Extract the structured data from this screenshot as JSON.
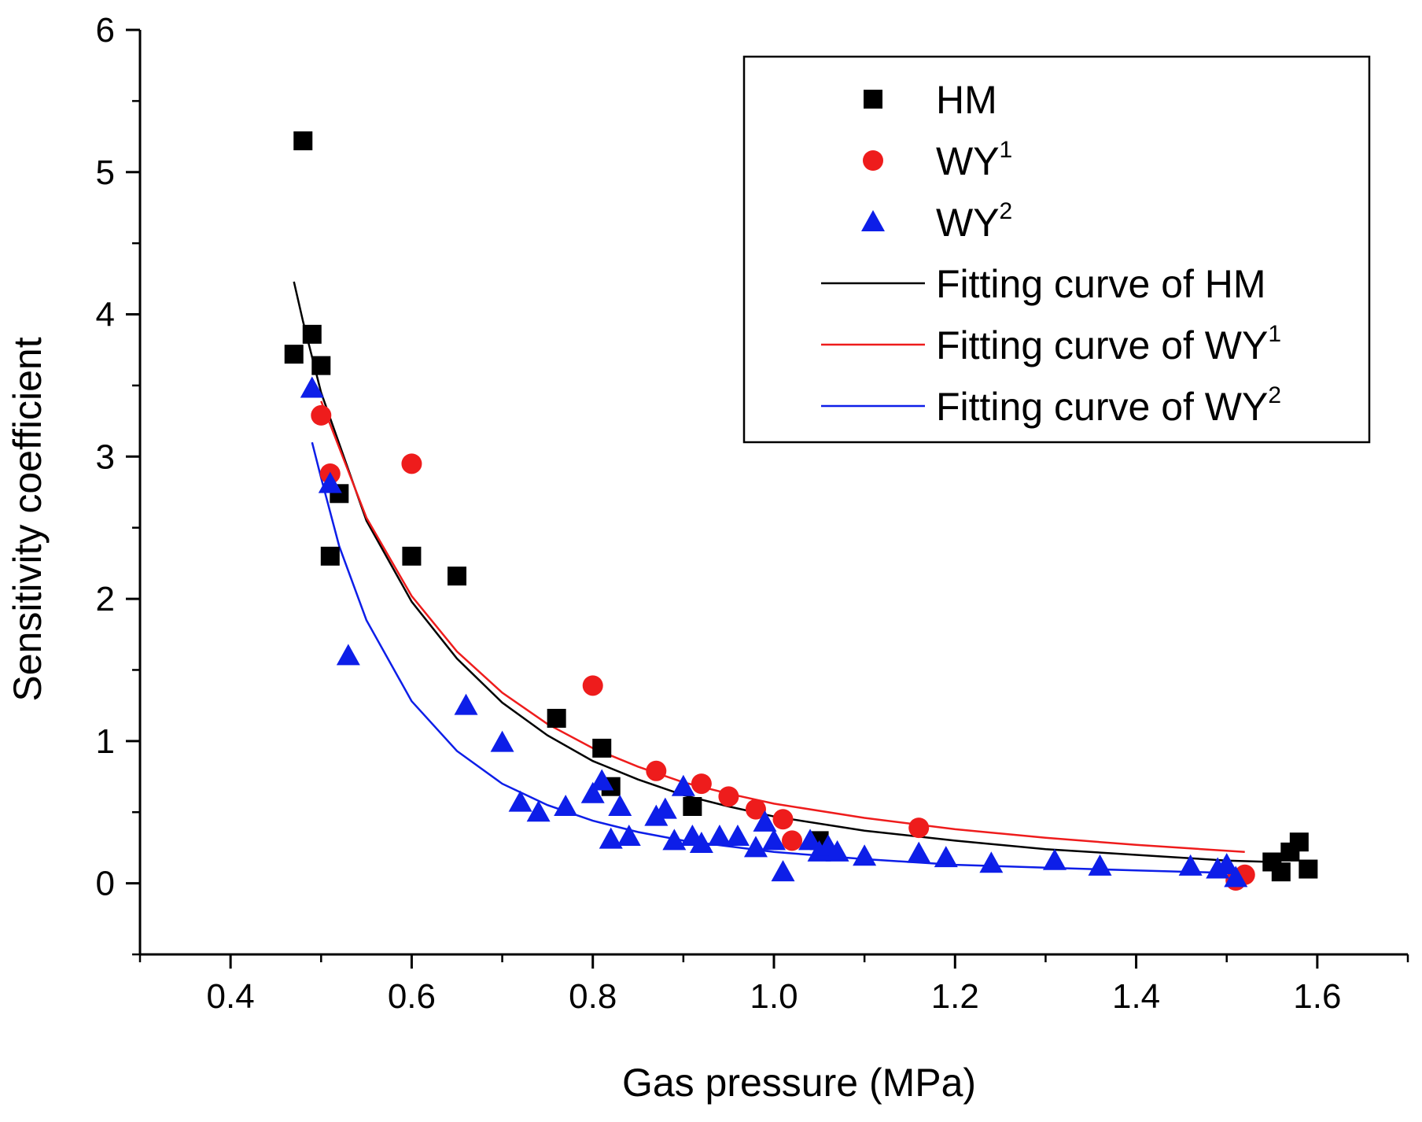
{
  "chart_data": {
    "type": "scatter",
    "xlabel": "Gas pressure (MPa)",
    "ylabel": "Sensitivity coefficient",
    "xlim": [
      0.3,
      1.7
    ],
    "ylim": [
      -0.5,
      6
    ],
    "xticks": [
      "0.4",
      "0.6",
      "0.8",
      "1.0",
      "1.2",
      "1.4",
      "1.6"
    ],
    "xtick_values": [
      0.4,
      0.6,
      0.8,
      1.0,
      1.2,
      1.4,
      1.6
    ],
    "yticks": [
      "0",
      "1",
      "2",
      "3",
      "4",
      "5",
      "6"
    ],
    "ytick_values": [
      0,
      1,
      2,
      3,
      4,
      5,
      6
    ],
    "legend_position": "top-right",
    "grid": false,
    "series": [
      {
        "name": "HM",
        "base": "HM",
        "sup": "",
        "marker": "square",
        "color": "#000000",
        "points": [
          [
            0.47,
            3.72
          ],
          [
            0.48,
            5.22
          ],
          [
            0.49,
            3.86
          ],
          [
            0.5,
            3.64
          ],
          [
            0.51,
            2.3
          ],
          [
            0.52,
            2.74
          ],
          [
            0.6,
            2.3
          ],
          [
            0.65,
            2.16
          ],
          [
            0.76,
            1.16
          ],
          [
            0.81,
            0.95
          ],
          [
            0.82,
            0.68
          ],
          [
            0.91,
            0.54
          ],
          [
            1.05,
            0.3
          ],
          [
            1.55,
            0.15
          ],
          [
            1.56,
            0.08
          ],
          [
            1.57,
            0.22
          ],
          [
            1.58,
            0.29
          ],
          [
            1.59,
            0.1
          ]
        ]
      },
      {
        "name": "WY1",
        "base": "WY",
        "sup": "1",
        "marker": "circle",
        "color": "#ee1c1c",
        "points": [
          [
            0.5,
            3.29
          ],
          [
            0.51,
            2.88
          ],
          [
            0.6,
            2.95
          ],
          [
            0.8,
            1.39
          ],
          [
            0.87,
            0.79
          ],
          [
            0.92,
            0.7
          ],
          [
            0.95,
            0.61
          ],
          [
            0.98,
            0.52
          ],
          [
            1.01,
            0.45
          ],
          [
            1.02,
            0.3
          ],
          [
            1.16,
            0.39
          ],
          [
            1.51,
            0.02
          ],
          [
            1.52,
            0.06
          ]
        ]
      },
      {
        "name": "WY2",
        "base": "WY",
        "sup": "2",
        "marker": "triangle",
        "color": "#0d1ee8",
        "points": [
          [
            0.49,
            3.48
          ],
          [
            0.51,
            2.81
          ],
          [
            0.53,
            1.6
          ],
          [
            0.66,
            1.25
          ],
          [
            0.7,
            0.99
          ],
          [
            0.72,
            0.57
          ],
          [
            0.74,
            0.5
          ],
          [
            0.77,
            0.54
          ],
          [
            0.8,
            0.63
          ],
          [
            0.81,
            0.72
          ],
          [
            0.82,
            0.31
          ],
          [
            0.83,
            0.54
          ],
          [
            0.84,
            0.33
          ],
          [
            0.87,
            0.47
          ],
          [
            0.88,
            0.52
          ],
          [
            0.89,
            0.3
          ],
          [
            0.9,
            0.68
          ],
          [
            0.91,
            0.33
          ],
          [
            0.92,
            0.28
          ],
          [
            0.94,
            0.33
          ],
          [
            0.96,
            0.33
          ],
          [
            0.98,
            0.25
          ],
          [
            0.99,
            0.43
          ],
          [
            1.0,
            0.3
          ],
          [
            1.01,
            0.08
          ],
          [
            1.04,
            0.3
          ],
          [
            1.05,
            0.22
          ],
          [
            1.06,
            0.26
          ],
          [
            1.07,
            0.22
          ],
          [
            1.1,
            0.19
          ],
          [
            1.16,
            0.21
          ],
          [
            1.19,
            0.18
          ],
          [
            1.24,
            0.14
          ],
          [
            1.31,
            0.16
          ],
          [
            1.36,
            0.12
          ],
          [
            1.46,
            0.12
          ],
          [
            1.49,
            0.1
          ],
          [
            1.5,
            0.13
          ],
          [
            1.51,
            0.04
          ]
        ]
      }
    ],
    "fits": [
      {
        "name": "Fitting curve of HM",
        "base": "Fitting curve of HM",
        "sup": "",
        "color": "#000000",
        "points": [
          [
            0.47,
            4.23
          ],
          [
            0.48,
            3.95
          ],
          [
            0.5,
            3.45
          ],
          [
            0.55,
            2.55
          ],
          [
            0.6,
            1.98
          ],
          [
            0.65,
            1.58
          ],
          [
            0.7,
            1.27
          ],
          [
            0.75,
            1.04
          ],
          [
            0.8,
            0.86
          ],
          [
            0.85,
            0.73
          ],
          [
            0.9,
            0.62
          ],
          [
            0.95,
            0.54
          ],
          [
            1.0,
            0.47
          ],
          [
            1.1,
            0.37
          ],
          [
            1.2,
            0.3
          ],
          [
            1.3,
            0.24
          ],
          [
            1.4,
            0.2
          ],
          [
            1.5,
            0.16
          ],
          [
            1.55,
            0.15
          ]
        ]
      },
      {
        "name": "Fitting curve of WY1",
        "base": "Fitting curve of WY",
        "sup": "1",
        "color": "#ee1c1c",
        "points": [
          [
            0.5,
            3.39
          ],
          [
            0.55,
            2.57
          ],
          [
            0.6,
            2.02
          ],
          [
            0.65,
            1.63
          ],
          [
            0.7,
            1.34
          ],
          [
            0.75,
            1.12
          ],
          [
            0.8,
            0.95
          ],
          [
            0.85,
            0.82
          ],
          [
            0.9,
            0.71
          ],
          [
            0.95,
            0.63
          ],
          [
            1.0,
            0.56
          ],
          [
            1.1,
            0.46
          ],
          [
            1.2,
            0.38
          ],
          [
            1.3,
            0.32
          ],
          [
            1.4,
            0.27
          ],
          [
            1.52,
            0.22
          ]
        ]
      },
      {
        "name": "Fitting curve of WY2",
        "base": "Fitting curve of WY",
        "sup": "2",
        "color": "#0d1ee8",
        "points": [
          [
            0.49,
            3.1
          ],
          [
            0.5,
            2.85
          ],
          [
            0.52,
            2.37
          ],
          [
            0.55,
            1.85
          ],
          [
            0.6,
            1.28
          ],
          [
            0.65,
            0.93
          ],
          [
            0.7,
            0.7
          ],
          [
            0.75,
            0.55
          ],
          [
            0.8,
            0.44
          ],
          [
            0.85,
            0.36
          ],
          [
            0.9,
            0.3
          ],
          [
            0.95,
            0.26
          ],
          [
            1.0,
            0.22
          ],
          [
            1.1,
            0.17
          ],
          [
            1.2,
            0.13
          ],
          [
            1.3,
            0.11
          ],
          [
            1.4,
            0.09
          ],
          [
            1.52,
            0.07
          ]
        ]
      }
    ]
  }
}
